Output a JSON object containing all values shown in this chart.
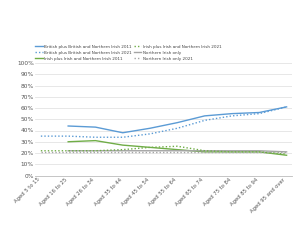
{
  "categories": [
    "Aged 5 to 15",
    "Aged 16 to 25",
    "Aged 26 to 34",
    "Aged 35 to 44",
    "Aged 45 to 54",
    "Aged 55 to 64",
    "Aged 65 to 74",
    "Aged 75 to 84",
    "Aged 85 to 94",
    "Aged 95 and over"
  ],
  "british_2011": [
    null,
    44,
    43,
    38,
    42,
    47,
    53,
    55,
    56,
    61
  ],
  "british_2021": [
    35,
    35,
    34,
    34,
    37,
    42,
    49,
    53,
    55,
    61
  ],
  "irish_2011": [
    null,
    30,
    31,
    27,
    25,
    23,
    21,
    21,
    21,
    18
  ],
  "irish_2021": [
    22,
    22,
    22,
    23,
    25,
    26,
    22,
    21,
    21,
    19
  ],
  "ni_2011": [
    null,
    22,
    22,
    22,
    22,
    22,
    22,
    22,
    22,
    21
  ],
  "ni_2021": [
    21,
    21,
    21,
    21,
    21,
    21,
    21,
    21,
    21,
    21
  ],
  "color_blue": "#5b9bd5",
  "color_green": "#70ad47",
  "color_gray": "#a5a5a5",
  "yticks": [
    0,
    10,
    20,
    30,
    40,
    50,
    60,
    70,
    80,
    90,
    100
  ],
  "legend_2011_labels": [
    "British plus British and Northern Irish 2011",
    "Irish plus Irish and Northern Irish 2011",
    "Northern Irish only"
  ],
  "legend_2021_labels": [
    "British plus British and Northern Irish 2021",
    "Irish plus Irish and Northern Irish 2021",
    "Northern Irish only 2021"
  ]
}
